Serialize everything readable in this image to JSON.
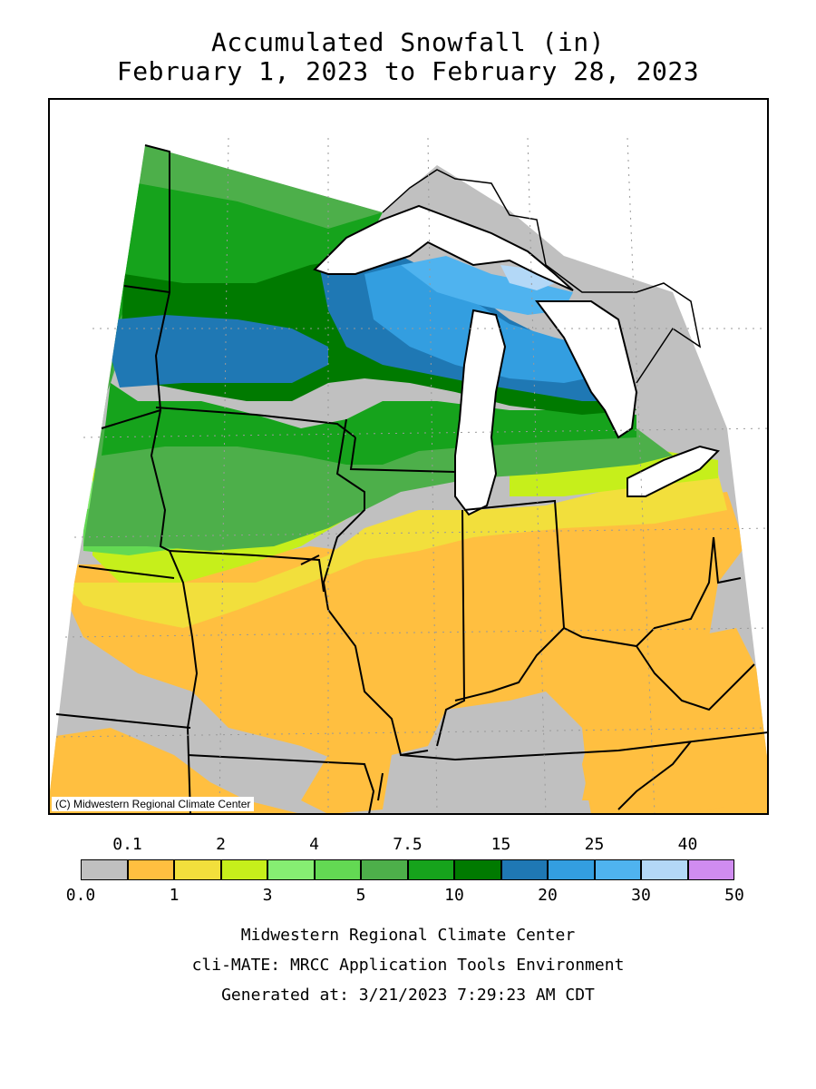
{
  "title": "Accumulated Snowfall (in)",
  "subtitle": "February 1, 2023 to February 28, 2023",
  "map": {
    "copyright": "(C) Midwestern Regional Climate Center",
    "regions": [
      "Minnesota",
      "Iowa",
      "Missouri",
      "Wisconsin",
      "Illinois",
      "Michigan",
      "Indiana",
      "Ohio",
      "Kentucky"
    ],
    "features": [
      "Lake Superior",
      "Lake Michigan",
      "Lake Huron",
      "Lake Erie"
    ]
  },
  "legend": {
    "top_labels": [
      "0.1",
      "2",
      "4",
      "7.5",
      "15",
      "25",
      "40"
    ],
    "bottom_labels": [
      "0.0",
      "1",
      "3",
      "5",
      "10",
      "20",
      "30",
      "50"
    ],
    "bins": [
      {
        "range": "0.0-0.1",
        "color": "#c0c0c0"
      },
      {
        "range": "0.1-1",
        "color": "#ffbf40"
      },
      {
        "range": "1-2",
        "color": "#f2df3c"
      },
      {
        "range": "2-3",
        "color": "#c6ef1b"
      },
      {
        "range": "3-4",
        "color": "#86ee72"
      },
      {
        "range": "4-5",
        "color": "#63d953"
      },
      {
        "range": "5-7.5",
        "color": "#4daf4a"
      },
      {
        "range": "7.5-10",
        "color": "#16a31c"
      },
      {
        "range": "10-15",
        "color": "#007a00"
      },
      {
        "range": "15-20",
        "color": "#1f78b4"
      },
      {
        "range": "20-25",
        "color": "#339ee0"
      },
      {
        "range": "25-30",
        "color": "#4fb3ef"
      },
      {
        "range": "30-40",
        "color": "#b3d8f7"
      },
      {
        "range": "40-50",
        "color": "#d08cf0"
      }
    ]
  },
  "footer": {
    "line1": "Midwestern Regional Climate Center",
    "line2": "cli-MATE: MRCC Application Tools Environment",
    "line3": "Generated at: 3/21/2023 7:29:23 AM CDT"
  }
}
